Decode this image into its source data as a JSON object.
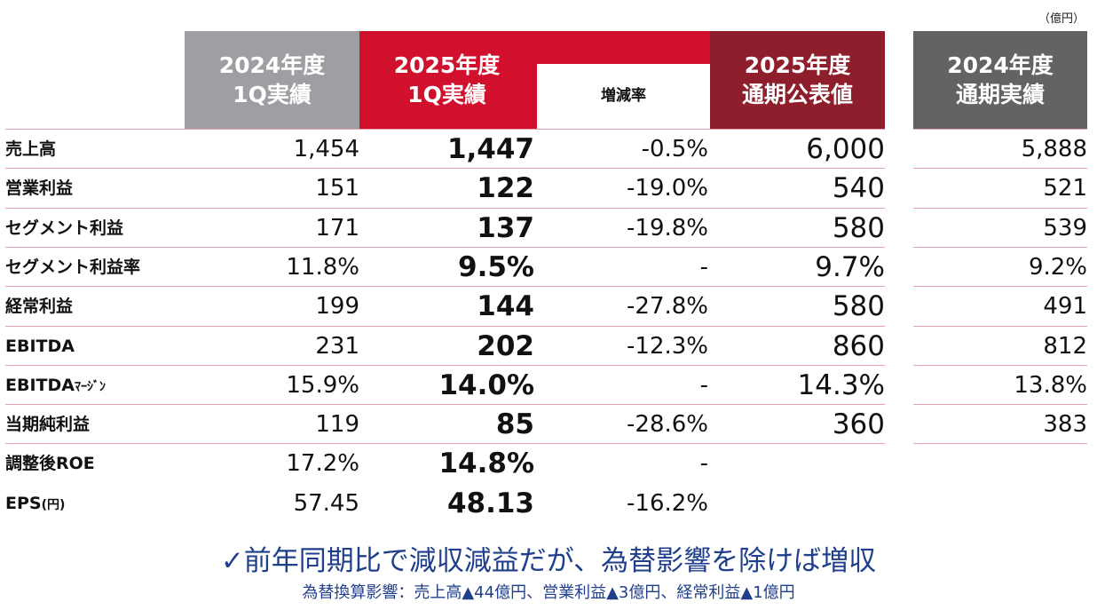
{
  "unit": "（億円）",
  "headers": {
    "fy2024_1q": [
      "2024年度",
      "1Q実績"
    ],
    "fy2025_1q": [
      "2025年度",
      "1Q実績"
    ],
    "change_rate": "増減率",
    "fy2025_forecast": [
      "2025年度",
      "通期公表値"
    ],
    "fy2024_full": [
      "2024年度",
      "通期実績"
    ]
  },
  "rows": [
    {
      "label": "売上高",
      "label_sub": "",
      "fy2024_1q": "1,454",
      "fy2025_1q": "1,447",
      "change": "-0.5%",
      "fy2025_forecast": "6,000",
      "fy2024_full": "5,888"
    },
    {
      "label": "営業利益",
      "label_sub": "",
      "fy2024_1q": "151",
      "fy2025_1q": "122",
      "change": "-19.0%",
      "fy2025_forecast": "540",
      "fy2024_full": "521"
    },
    {
      "label": "セグメント利益",
      "label_sub": "",
      "fy2024_1q": "171",
      "fy2025_1q": "137",
      "change": "-19.8%",
      "fy2025_forecast": "580",
      "fy2024_full": "539"
    },
    {
      "label": "セグメント利益率",
      "label_sub": "",
      "fy2024_1q": "11.8%",
      "fy2025_1q": "9.5%",
      "change": "-",
      "fy2025_forecast": "9.7%",
      "fy2024_full": "9.2%"
    },
    {
      "label": "経常利益",
      "label_sub": "",
      "fy2024_1q": "199",
      "fy2025_1q": "144",
      "change": "-27.8%",
      "fy2025_forecast": "580",
      "fy2024_full": "491"
    },
    {
      "label": "EBITDA",
      "label_sub": "",
      "fy2024_1q": "231",
      "fy2025_1q": "202",
      "change": "-12.3%",
      "fy2025_forecast": "860",
      "fy2024_full": "812"
    },
    {
      "label": "EBITDA",
      "label_sub": "ﾏｰｼﾞﾝ",
      "fy2024_1q": "15.9%",
      "fy2025_1q": "14.0%",
      "change": "-",
      "fy2025_forecast": "14.3%",
      "fy2024_full": "13.8%"
    },
    {
      "label": "当期純利益",
      "label_sub": "",
      "fy2024_1q": "119",
      "fy2025_1q": "85",
      "change": "-28.6%",
      "fy2025_forecast": "360",
      "fy2024_full": "383"
    },
    {
      "label": "調整後ROE",
      "label_sub": "",
      "fy2024_1q": "17.2%",
      "fy2025_1q": "14.8%",
      "change": "-",
      "fy2025_forecast": "",
      "fy2024_full": ""
    },
    {
      "label": "EPS",
      "label_sub": "(円)",
      "fy2024_1q": "57.45",
      "fy2025_1q": "48.13",
      "change": "-16.2%",
      "fy2025_forecast": "",
      "fy2024_full": ""
    }
  ],
  "summary": "✓前年同期比で減収減益だが、為替影響を除けば増収",
  "note": "為替換算影響：売上高▲44億円、営業利益▲3億円、経常利益▲1億円"
}
